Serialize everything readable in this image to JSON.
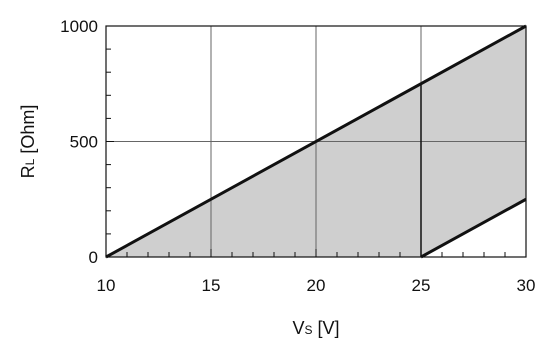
{
  "chart_data": {
    "type": "area",
    "title": "",
    "xlabel": {
      "main": "V",
      "sub": "S",
      "unit": " [V]"
    },
    "ylabel": {
      "main": "R",
      "sub": "L",
      "unit": " [Ohm]"
    },
    "xlim": [
      10,
      30
    ],
    "ylim": [
      0,
      1000
    ],
    "x_ticks": [
      10,
      15,
      20,
      25,
      30
    ],
    "y_ticks": [
      0,
      500,
      1000
    ],
    "x_minor_step": 1,
    "y_minor_step": 100,
    "grid": true,
    "region": {
      "upper": {
        "x": [
          10,
          30
        ],
        "y": [
          0,
          1000
        ]
      },
      "lower": {
        "x": [
          10,
          25,
          30
        ],
        "y": [
          0,
          0,
          250
        ]
      },
      "fill": "#cfcfcf"
    },
    "colors": {
      "line": "#111111",
      "grid": "#666666",
      "axis": "#111111"
    }
  }
}
